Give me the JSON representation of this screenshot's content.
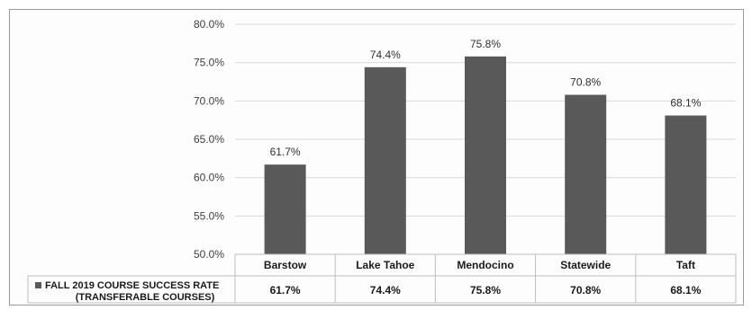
{
  "chart_data": {
    "type": "bar",
    "categories": [
      "Barstow",
      "Lake Tahoe",
      "Mendocino",
      "Statewide",
      "Taft"
    ],
    "series": [
      {
        "name": "FALL 2019 COURSE SUCCESS RATE (TRANSFERABLE COURSES)",
        "name_lines": [
          "FALL 2019 COURSE SUCCESS RATE",
          "(TRANSFERABLE COURSES)"
        ],
        "values": [
          61.7,
          74.4,
          75.8,
          70.8,
          68.1
        ],
        "labels": [
          "61.7%",
          "74.4%",
          "75.8%",
          "70.8%",
          "68.1%"
        ],
        "color": "#595959"
      }
    ],
    "yticks": [
      "50.0%",
      "55.0%",
      "60.0%",
      "65.0%",
      "70.0%",
      "75.0%",
      "80.0%"
    ],
    "ylim": [
      50,
      80
    ],
    "grid": true,
    "legend": "data-table-left"
  }
}
